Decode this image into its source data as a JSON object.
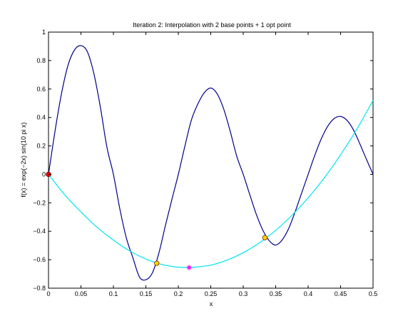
{
  "chart_data": {
    "type": "line",
    "title": "Iteration 2: Interpolation with 2 base points + 1 opt point",
    "xlabel": "x",
    "ylabel": "f(x) = exp(−2x) sin(10 pi x)",
    "xlim": [
      0,
      0.5
    ],
    "ylim": [
      -0.8,
      1
    ],
    "x_ticks": [
      0,
      0.05,
      0.1,
      0.15,
      0.2,
      0.25,
      0.3,
      0.35,
      0.4,
      0.45,
      0.5
    ],
    "x_tick_labels": [
      "0",
      "0.05",
      "0.1",
      "0.15",
      "0.2",
      "0.25",
      "0.3",
      "0.35",
      "0.4",
      "0.45",
      "0.5"
    ],
    "y_ticks": [
      -0.8,
      -0.6,
      -0.4,
      -0.2,
      0,
      0.2,
      0.4,
      0.6,
      0.8,
      1
    ],
    "y_tick_labels": [
      "−0.8",
      "−0.6",
      "−0.4",
      "−0.2",
      "0",
      "0.2",
      "0.4",
      "0.6",
      "0.8",
      "1"
    ],
    "grid": false,
    "series": [
      {
        "kind": "function",
        "color": "#00008b",
        "x": [
          0,
          0.01,
          0.02,
          0.03,
          0.04,
          0.05,
          0.06,
          0.07,
          0.08,
          0.09,
          0.1,
          0.11,
          0.12,
          0.13,
          0.14,
          0.15,
          0.16,
          0.17,
          0.18,
          0.19,
          0.2,
          0.21,
          0.22,
          0.23,
          0.24,
          0.25,
          0.26,
          0.27,
          0.28,
          0.29,
          0.3,
          0.31,
          0.32,
          0.33,
          0.34,
          0.35,
          0.36,
          0.37,
          0.38,
          0.39,
          0.4,
          0.41,
          0.42,
          0.43,
          0.44,
          0.45,
          0.46,
          0.47,
          0.48,
          0.49,
          0.5
        ],
        "y": [
          0,
          0.303,
          0.567,
          0.766,
          0.874,
          0.905,
          0.861,
          0.706,
          0.47,
          0.191,
          0,
          -0.245,
          -0.448,
          -0.586,
          -0.72,
          -0.741,
          -0.693,
          -0.554,
          -0.362,
          -0.178,
          0,
          0.196,
          0.38,
          0.494,
          0.574,
          0.607,
          0.565,
          0.458,
          0.302,
          0.128,
          0,
          -0.141,
          -0.279,
          -0.39,
          -0.466,
          -0.497,
          -0.461,
          -0.381,
          -0.262,
          -0.131,
          0,
          0.131,
          0.247,
          0.337,
          0.392,
          0.407,
          0.379,
          0.311,
          0.211,
          0.104,
          0
        ]
      },
      {
        "kind": "interpolation",
        "color": "#00e5ee",
        "x": [
          0,
          0.025,
          0.05,
          0.075,
          0.1,
          0.125,
          0.15,
          0.175,
          0.2,
          0.225,
          0.25,
          0.275,
          0.3,
          0.325,
          0.35,
          0.375,
          0.4,
          0.425,
          0.45,
          0.475,
          0.5
        ],
        "y": [
          0,
          -0.144,
          -0.264,
          -0.373,
          -0.462,
          -0.538,
          -0.595,
          -0.634,
          -0.652,
          -0.652,
          -0.638,
          -0.603,
          -0.551,
          -0.481,
          -0.394,
          -0.288,
          -0.165,
          -0.024,
          0.138,
          0.317,
          0.52
        ]
      }
    ],
    "points": [
      {
        "x": 0,
        "y": 0,
        "marker": "circle",
        "fill": "#ff0000",
        "stroke": "#800000"
      },
      {
        "x": 0.1667,
        "y": -0.625,
        "marker": "circle",
        "fill": "#ffd700",
        "stroke": "#8b4500"
      },
      {
        "x": 0.3333,
        "y": -0.445,
        "marker": "circle",
        "fill": "#ffd700",
        "stroke": "#8b4500"
      },
      {
        "x": 0.2167,
        "y": -0.655,
        "marker": "star",
        "fill": "#ff00ff",
        "stroke": "#ff00ff"
      }
    ]
  }
}
